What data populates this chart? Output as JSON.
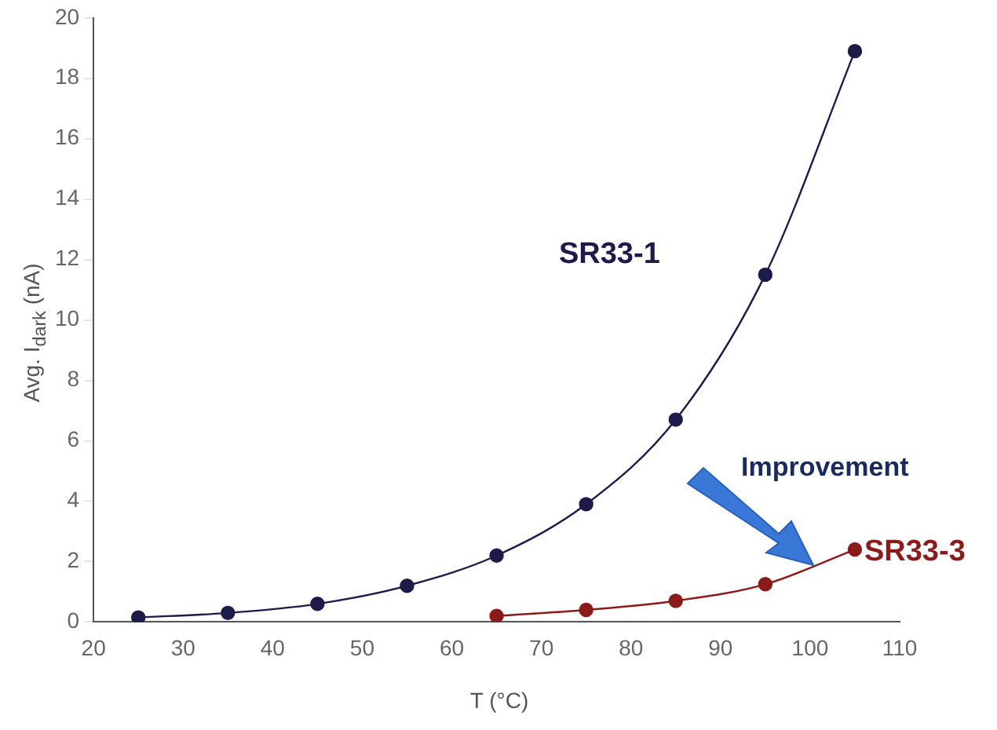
{
  "chart_data": {
    "type": "line",
    "xlabel": "T (°C)",
    "ylabel": "Avg. I$_{dark}$ (nA)",
    "xlim": [
      20,
      110
    ],
    "xticks": [
      20,
      30,
      40,
      50,
      60,
      70,
      80,
      90,
      100,
      110
    ],
    "ylim": [
      0,
      20
    ],
    "yticks": [
      0,
      2,
      4,
      6,
      8,
      10,
      12,
      14,
      16,
      18,
      20
    ],
    "grid": false,
    "legend": false,
    "marker": "circle",
    "line_style": "solid",
    "annotations": [
      "Improvement"
    ],
    "series": [
      {
        "name": "SR33-1",
        "color": "#1e1b4b",
        "x": [
          25,
          35,
          45,
          55,
          65,
          75,
          85,
          95,
          105
        ],
        "values": [
          0.15,
          0.3,
          0.6,
          1.2,
          2.2,
          3.9,
          6.7,
          11.5,
          18.9
        ]
      },
      {
        "name": "SR33-3",
        "color": "#8b1a1a",
        "x": [
          65,
          75,
          85,
          95,
          105
        ],
        "values": [
          0.2,
          0.4,
          0.7,
          1.25,
          2.4
        ]
      }
    ]
  }
}
